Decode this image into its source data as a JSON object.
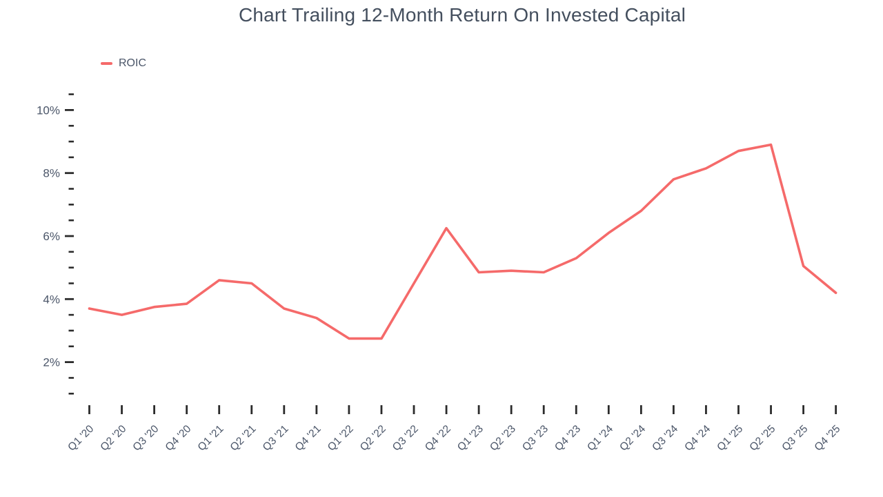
{
  "page": {
    "background": "#ffffff"
  },
  "colors": {
    "title": "#444f5e",
    "axis_label": "#4a5568",
    "tick": "#2b2b2b",
    "line": "#f56a6a"
  },
  "chart_data": {
    "type": "line",
    "title": "Chart Trailing 12-Month Return On Invested Capital",
    "legend": {
      "position": "top-left",
      "entries": [
        "ROIC"
      ]
    },
    "categories": [
      "Q1 '20",
      "Q2 '20",
      "Q3 '20",
      "Q4 '20",
      "Q1 '21",
      "Q2 '21",
      "Q3 '21",
      "Q4 '21",
      "Q1 '22",
      "Q2 '22",
      "Q3 '22",
      "Q4 '22",
      "Q1 '23",
      "Q2 '23",
      "Q3 '23",
      "Q4 '23",
      "Q1 '24",
      "Q2 '24",
      "Q3 '24",
      "Q4 '24",
      "Q1 '25",
      "Q2 '25",
      "Q3 '25",
      "Q4 '25"
    ],
    "series": [
      {
        "name": "ROIC",
        "color": "#f56a6a",
        "values": [
          3.7,
          3.5,
          3.75,
          3.85,
          4.6,
          4.5,
          3.7,
          3.4,
          2.75,
          2.75,
          4.5,
          6.25,
          4.85,
          4.9,
          4.85,
          5.3,
          6.1,
          6.8,
          7.8,
          8.15,
          8.7,
          8.9,
          5.05,
          4.2
        ]
      }
    ],
    "y_axis": {
      "unit": "%",
      "major_ticks": [
        2,
        4,
        6,
        8,
        10
      ],
      "minor_tick_step": 0.5,
      "minor_tick_range": [
        1.0,
        10.5
      ],
      "grid": false
    },
    "x_axis": {
      "label_rotation_deg": -45,
      "grid": false
    }
  }
}
